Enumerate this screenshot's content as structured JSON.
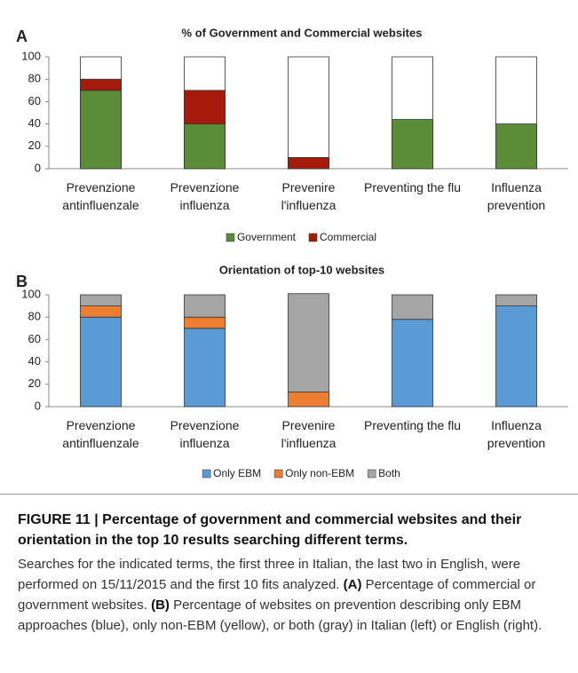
{
  "chart_data": [
    {
      "type": "stacked_bar",
      "panel": "A",
      "title": "% of Government and Commercial websites",
      "categories": [
        "Prevenzione antinfluenzale",
        "Prevenzione influenza",
        "Prevenire l'influenza",
        "Preventing the flu",
        "Influenza prevention"
      ],
      "series": [
        {
          "name": "Government",
          "color": "#5b8c38",
          "values": [
            70,
            40,
            0,
            44,
            40
          ]
        },
        {
          "name": "Commercial",
          "color": "#a51a0b",
          "values": [
            10,
            30,
            10,
            0,
            0
          ]
        }
      ],
      "ylim": [
        0,
        100
      ],
      "yticks": [
        0,
        20,
        40,
        60,
        80,
        100
      ],
      "frame": true,
      "legend": "bottom"
    },
    {
      "type": "stacked_bar",
      "panel": "B",
      "title": "Orientation of top-10 websites",
      "categories": [
        "Prevenzione antinfluenzale",
        "Prevenzione influenza",
        "Prevenire l'influenza",
        "Preventing the flu",
        "Influenza prevention"
      ],
      "series": [
        {
          "name": "Only EBM",
          "color": "#5b9bd5",
          "values": [
            80,
            70,
            0,
            78,
            90
          ]
        },
        {
          "name": "Only non-EBM",
          "color": "#ed7d31",
          "values": [
            10,
            10,
            13,
            0,
            0
          ]
        },
        {
          "name": "Both",
          "color": "#a5a5a5",
          "values": [
            10,
            20,
            88,
            22,
            10
          ]
        }
      ],
      "ylim": [
        0,
        100
      ],
      "yticks": [
        0,
        20,
        40,
        60,
        80,
        100
      ],
      "frame": false,
      "legend": "bottom"
    }
  ],
  "caption": {
    "title": "FIGURE 11 | Percentage of government and commercial websites and their orientation in the top 10 results searching different terms.",
    "body": [
      "Searches for the indicated terms, the first three in Italian, the last two in English, were performed on 15/11/2015 and the first 10 fits analyzed.",
      "(A)",
      "Percentage of commercial or government websites.",
      "(B)",
      "Percentage of websites on prevention describing only EBM approaches (blue), only non-EBM (yellow), or both (gray) in Italian (left) or English (right)."
    ]
  }
}
